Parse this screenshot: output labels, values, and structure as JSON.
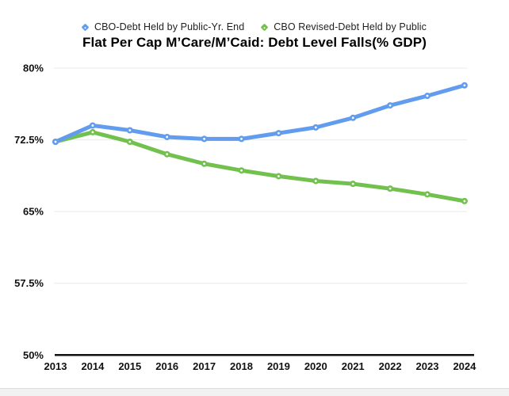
{
  "title": "Flat Per Cap M’Care/M’Caid: Debt Level Falls(% GDP)",
  "legend": {
    "items": [
      {
        "label": "CBO-Debt Held by Public-Yr. End",
        "color": "#619CEF",
        "marker": "diamond-icon"
      },
      {
        "label": "CBO Revised-Debt Held by Public",
        "color": "#72C14E",
        "marker": "diamond-icon"
      }
    ]
  },
  "chart_data": {
    "type": "line",
    "title": "Flat Per Cap M’Care/M’Caid: Debt Level Falls(% GDP)",
    "xlabel": "",
    "ylabel": "",
    "categories": [
      "2013",
      "2014",
      "2015",
      "2016",
      "2017",
      "2018",
      "2019",
      "2020",
      "2021",
      "2022",
      "2023",
      "2024"
    ],
    "series": [
      {
        "name": "CBO-Debt Held by Public-Yr. End",
        "color": "#619CEF",
        "values": [
          72.3,
          74.0,
          73.5,
          72.8,
          72.6,
          72.6,
          73.2,
          73.8,
          74.8,
          76.1,
          77.1,
          78.2
        ]
      },
      {
        "name": "CBO Revised-Debt Held by Public",
        "color": "#72C14E",
        "values": [
          72.3,
          73.3,
          72.3,
          71.0,
          70.0,
          69.3,
          68.7,
          68.2,
          67.9,
          67.4,
          66.8,
          66.1
        ]
      }
    ],
    "ylim": [
      50,
      80
    ],
    "y_ticks": [
      {
        "label": "80%",
        "value": 80
      },
      {
        "label": "72.5%",
        "value": 72.5
      },
      {
        "label": "65%",
        "value": 65
      },
      {
        "label": "57.5%",
        "value": 57.5
      },
      {
        "label": "50%",
        "value": 50
      }
    ],
    "grid": true,
    "legend_position": "top",
    "marker": "open-circle",
    "colors": {
      "gridline": "#e9e9e9",
      "axis_line": "#111111",
      "tick_text": "#111111"
    }
  }
}
